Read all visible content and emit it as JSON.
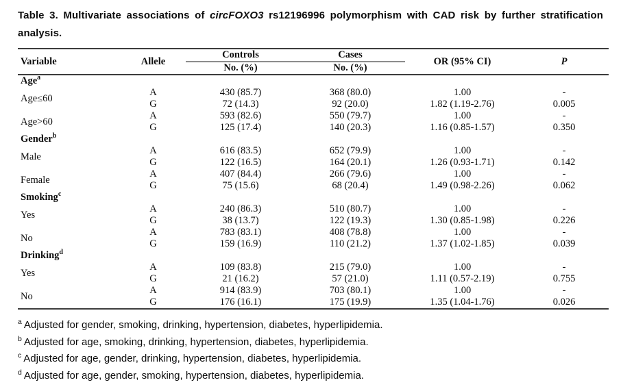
{
  "title": {
    "prefix": "Table 3. Multivariate associations of ",
    "gene": "circFOXO3",
    "suffix": " rs12196996 polymorphism with CAD risk by further stratification analysis."
  },
  "table": {
    "header": {
      "variable": "Variable",
      "allele": "Allele",
      "controls": "Controls",
      "cases": "Cases",
      "controls_sub": "No. (%)",
      "cases_sub": "No. (%)",
      "or": "OR (95% CI)",
      "p": "P"
    },
    "sections": [
      {
        "label": "Age",
        "sup": "a",
        "groups": [
          {
            "label": "Age≤60",
            "rows": [
              [
                "A",
                "430 (85.7)",
                "368 (80.0)",
                "1.00",
                "-"
              ],
              [
                "G",
                "72 (14.3)",
                "92 (20.0)",
                "1.82 (1.19-2.76)",
                "0.005"
              ]
            ]
          },
          {
            "label": "Age>60",
            "rows": [
              [
                "A",
                "593 (82.6)",
                "550 (79.7)",
                "1.00",
                "-"
              ],
              [
                "G",
                "125 (17.4)",
                "140 (20.3)",
                "1.16 (0.85-1.57)",
                "0.350"
              ]
            ]
          }
        ]
      },
      {
        "label": "Gender",
        "sup": "b",
        "groups": [
          {
            "label": "Male",
            "rows": [
              [
                "A",
                "616 (83.5)",
                "652 (79.9)",
                "1.00",
                "-"
              ],
              [
                "G",
                "122 (16.5)",
                "164 (20.1)",
                "1.26 (0.93-1.71)",
                "0.142"
              ]
            ]
          },
          {
            "label": "Female",
            "rows": [
              [
                "A",
                "407 (84.4)",
                "266 (79.6)",
                "1.00",
                "-"
              ],
              [
                "G",
                "75 (15.6)",
                "68 (20.4)",
                "1.49 (0.98-2.26)",
                "0.062"
              ]
            ]
          }
        ]
      },
      {
        "label": "Smoking",
        "sup": "c",
        "groups": [
          {
            "label": "Yes",
            "rows": [
              [
                "A",
                "240 (86.3)",
                "510 (80.7)",
                "1.00",
                "-"
              ],
              [
                "G",
                "38 (13.7)",
                "122 (19.3)",
                "1.30 (0.85-1.98)",
                "0.226"
              ]
            ]
          },
          {
            "label": "No",
            "rows": [
              [
                "A",
                "783 (83.1)",
                "408 (78.8)",
                "1.00",
                "-"
              ],
              [
                "G",
                "159 (16.9)",
                "110 (21.2)",
                "1.37 (1.02-1.85)",
                "0.039"
              ]
            ]
          }
        ]
      },
      {
        "label": "Drinking",
        "sup": "d",
        "groups": [
          {
            "label": "Yes",
            "rows": [
              [
                "A",
                "109 (83.8)",
                "215 (79.0)",
                "1.00",
                "-"
              ],
              [
                "G",
                "21 (16.2)",
                "57 (21.0)",
                "1.11 (0.57-2.19)",
                "0.755"
              ]
            ]
          },
          {
            "label": "No",
            "rows": [
              [
                "A",
                "914 (83.9)",
                "703 (80.1)",
                "1.00",
                "-"
              ],
              [
                "G",
                "176 (16.1)",
                "175 (19.9)",
                "1.35 (1.04-1.76)",
                "0.026"
              ]
            ]
          }
        ]
      }
    ]
  },
  "footnotes": [
    {
      "sup": "a",
      "text": "Adjusted for gender, smoking, drinking, hypertension, diabetes, hyperlipidemia."
    },
    {
      "sup": "b",
      "text": "Adjusted for age, smoking, drinking, hypertension, diabetes, hyperlipidemia."
    },
    {
      "sup": "c",
      "text": "Adjusted for age, gender, drinking, hypertension, diabetes, hyperlipidemia."
    },
    {
      "sup": "d",
      "text": "Adjusted for age, gender, smoking, hypertension, diabetes, hyperlipidemia."
    }
  ]
}
